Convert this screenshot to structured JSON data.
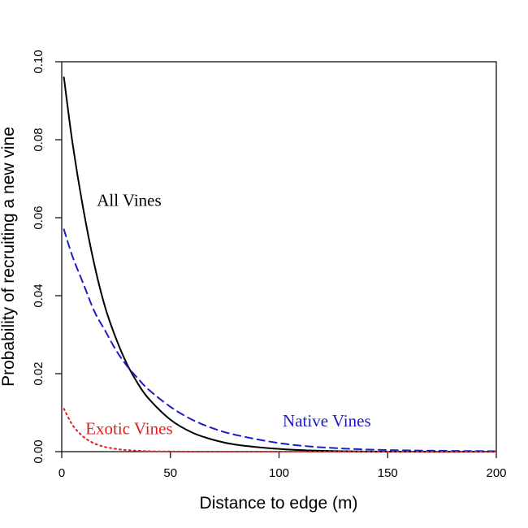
{
  "chart_data": {
    "type": "line",
    "title": "",
    "xlabel": "Distance to edge (m)",
    "ylabel": "Probability of recruiting a new vine",
    "xlim": [
      0,
      200
    ],
    "ylim": [
      0,
      0.1
    ],
    "x_ticks": [
      "0",
      "50",
      "100",
      "150",
      "200"
    ],
    "y_ticks": [
      "0.00",
      "0.02",
      "0.04",
      "0.06",
      "0.08",
      "0.10"
    ],
    "grid": false,
    "legend": "none (curves labelled directly on the plot)",
    "series": [
      {
        "name": "All Vines",
        "color": "#000000",
        "dash": "solid",
        "x": [
          1,
          5,
          10,
          15,
          20,
          25,
          30,
          35,
          40,
          50,
          60,
          70,
          80,
          100,
          120,
          150,
          200
        ],
        "y": [
          0.096,
          0.079,
          0.062,
          0.048,
          0.037,
          0.029,
          0.0225,
          0.0175,
          0.0136,
          0.0082,
          0.0049,
          0.003,
          0.0018,
          0.0007,
          0.0002,
          0.0,
          0.0
        ]
      },
      {
        "name": "Native Vines",
        "color": "#1c1cc8",
        "dash": "dashed",
        "x": [
          1,
          5,
          10,
          15,
          20,
          25,
          30,
          35,
          40,
          50,
          60,
          70,
          80,
          100,
          120,
          150,
          200
        ],
        "y": [
          0.057,
          0.05,
          0.043,
          0.036,
          0.031,
          0.026,
          0.022,
          0.0188,
          0.0159,
          0.0115,
          0.0082,
          0.0059,
          0.0043,
          0.0022,
          0.0011,
          0.0004,
          0.0001
        ]
      },
      {
        "name": "Exotic Vines",
        "color": "#e02020",
        "dash": "dotted",
        "x": [
          1,
          5,
          10,
          15,
          20,
          25,
          30,
          40,
          50,
          60,
          80,
          100,
          150,
          200
        ],
        "y": [
          0.011,
          0.0068,
          0.0038,
          0.0021,
          0.0012,
          0.0007,
          0.0004,
          0.00012,
          4e-05,
          1e-05,
          0.0,
          0.0,
          0.0,
          0.0
        ]
      }
    ],
    "annotations": [
      {
        "text": "All Vines",
        "x": 31,
        "y": 0.063,
        "color": "#000000"
      },
      {
        "text": "Native Vines",
        "x": 122,
        "y": 0.0065,
        "color": "#1c1cc8"
      },
      {
        "text": "Exotic Vines",
        "x": 31,
        "y": 0.0045,
        "color": "#e02020"
      }
    ]
  }
}
